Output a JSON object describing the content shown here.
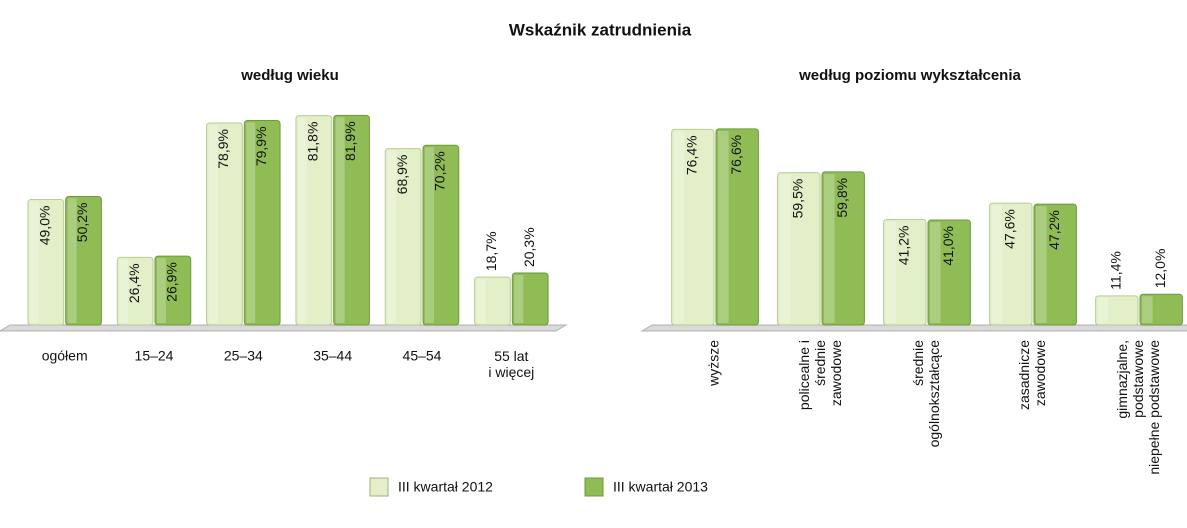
{
  "title": "Wskaźnik zatrudnienia",
  "chart_data": [
    {
      "type": "bar",
      "title": "według wieku",
      "categories": [
        "ogółem",
        "15–24",
        "25–34",
        "35–44",
        "45–54",
        "55 lat\ni więcej"
      ],
      "series": [
        {
          "name": "III kwartał 2012",
          "color": "#e2efc9",
          "values": [
            49.0,
            26.4,
            78.9,
            81.8,
            68.9,
            18.7
          ],
          "value_labels": [
            "49,0%",
            "26,4%",
            "78,9%",
            "81,8%",
            "68,9%",
            "18,7%"
          ]
        },
        {
          "name": "III kwartał 2013",
          "color": "#8fbc55",
          "values": [
            50.2,
            26.9,
            79.9,
            81.9,
            70.2,
            20.3
          ],
          "value_labels": [
            "50,2%",
            "26,9%",
            "79,9%",
            "81,9%",
            "70,2%",
            "20,3%"
          ]
        }
      ]
    },
    {
      "type": "bar",
      "title": "według poziomu wykształcenia",
      "categories": [
        "wyższe",
        "policealne i\nśrednie\nzawodowe",
        "średnie\nogólnokształcące",
        "zasadnicze\nzawodowe",
        "gimnazjalne,\npodstawowe\nniepełne podstawowe"
      ],
      "series": [
        {
          "color": "#e2efc9",
          "values": [
            76.4,
            59.5,
            41.2,
            47.6,
            11.4
          ],
          "value_labels": [
            "76,4%",
            "59,5%",
            "41,2%",
            "47,6%",
            "11,4%"
          ]
        },
        {
          "color": "#8fbc55",
          "values": [
            76.6,
            59.8,
            41.0,
            47.2,
            12.0
          ],
          "value_labels": [
            "76,6%",
            "59,8%",
            "41,0%",
            "47,2%",
            "12,0%"
          ]
        }
      ]
    }
  ]
}
